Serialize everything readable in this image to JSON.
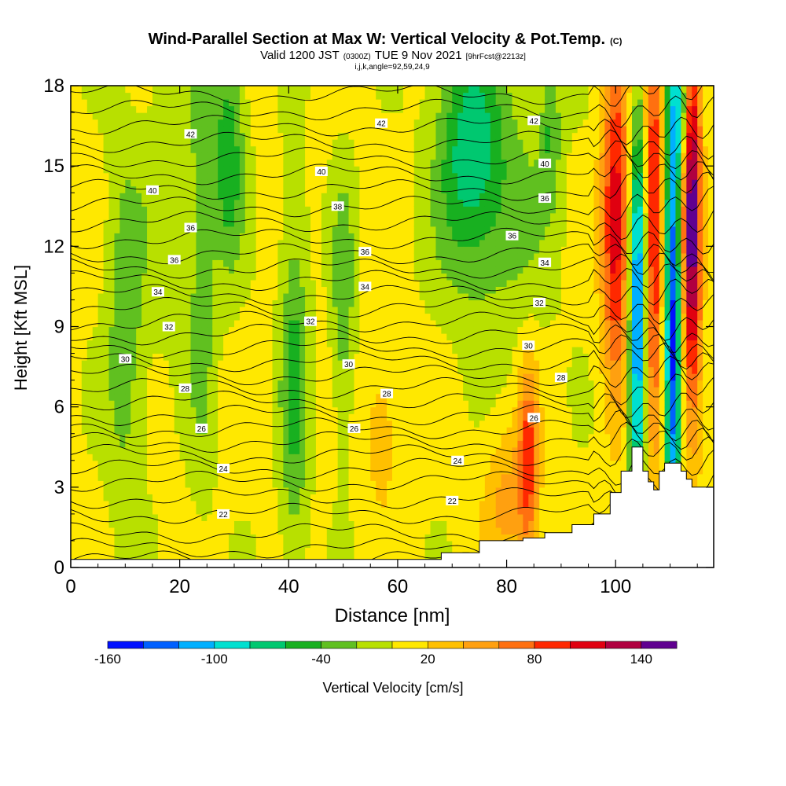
{
  "chart_data": {
    "type": "heatmap",
    "title": "Wind-Parallel Section at Max W: Vertical Velocity & Pot.Temp.",
    "title_mark": "(C)",
    "subtitle": {
      "prefix": "Valid 1200 JST",
      "utc": "(0300Z)",
      "date": "TUE 9 Nov 2021",
      "forecast": "[9hrFcst@2213z]"
    },
    "subtitle2": "i,j,k,angle=92,59,24,9",
    "xlabel": "Distance [nm]",
    "ylabel": "Height [Kft MSL]",
    "xlim": [
      0,
      118
    ],
    "ylim": [
      0,
      18
    ],
    "x_ticks": [
      0,
      20,
      40,
      60,
      80,
      100
    ],
    "y_ticks": [
      0,
      3,
      6,
      9,
      12,
      15,
      18
    ],
    "grid": false,
    "colorbar": {
      "label": "Vertical Velocity [cm/s]",
      "levels": [
        -160,
        -140,
        -120,
        -100,
        -80,
        -60,
        -40,
        -20,
        0,
        20,
        40,
        60,
        80,
        100,
        120,
        140,
        160
      ],
      "tick_labels": [
        "-160",
        "-100",
        "-40",
        "20",
        "80",
        "140"
      ],
      "tick_values": [
        -160,
        -100,
        -40,
        20,
        80,
        140
      ],
      "colors": [
        "#0010ff",
        "#0060ff",
        "#00b0ff",
        "#00e0d0",
        "#00c870",
        "#18b020",
        "#60c020",
        "#b8e000",
        "#ffe800",
        "#ffc000",
        "#ffa010",
        "#ff7010",
        "#ff2800",
        "#e00010",
        "#b00040",
        "#600090"
      ]
    },
    "terrain": [
      [
        0,
        0.3
      ],
      [
        68,
        0.3
      ],
      [
        68,
        0.55
      ],
      [
        75,
        0.55
      ],
      [
        75,
        1.0
      ],
      [
        83,
        1.0
      ],
      [
        83,
        1.1
      ],
      [
        87,
        1.1
      ],
      [
        87,
        1.3
      ],
      [
        92,
        1.3
      ],
      [
        92,
        1.6
      ],
      [
        96,
        1.6
      ],
      [
        96,
        2.0
      ],
      [
        99,
        2.0
      ],
      [
        99,
        2.8
      ],
      [
        101,
        2.8
      ],
      [
        101,
        3.6
      ],
      [
        103,
        3.6
      ],
      [
        103,
        4.5
      ],
      [
        105,
        4.5
      ],
      [
        105,
        3.6
      ],
      [
        106,
        3.6
      ],
      [
        106,
        3.2
      ],
      [
        107,
        3.2
      ],
      [
        107,
        2.9
      ],
      [
        108,
        2.9
      ],
      [
        108,
        3.6
      ],
      [
        109,
        3.6
      ],
      [
        109,
        3.9
      ],
      [
        112,
        3.9
      ],
      [
        112,
        3.6
      ],
      [
        113,
        3.6
      ],
      [
        113,
        3.3
      ],
      [
        114,
        3.3
      ],
      [
        114,
        3.0
      ],
      [
        118,
        3.0
      ]
    ],
    "updrafts": [
      {
        "x": 10,
        "y": 9,
        "sx": 2.5,
        "sy": 5,
        "w": -40
      },
      {
        "x": 17,
        "y": 14,
        "sx": 2.5,
        "sy": 4,
        "w": -20
      },
      {
        "x": 24,
        "y": 12,
        "sx": 1.8,
        "sy": 6,
        "w": -40
      },
      {
        "x": 29,
        "y": 15.5,
        "sx": 2,
        "sy": 3,
        "w": -60
      },
      {
        "x": 41,
        "y": 7,
        "sx": 1.8,
        "sy": 5,
        "w": -50
      },
      {
        "x": 50,
        "y": 10,
        "sx": 1.5,
        "sy": 3.5,
        "w": -40
      },
      {
        "x": 73,
        "y": 16,
        "sx": 4,
        "sy": 3,
        "w": -60
      },
      {
        "x": 78,
        "y": 13.5,
        "sx": 7,
        "sy": 3.5,
        "w": -35
      },
      {
        "x": 88,
        "y": 16.5,
        "sx": 1.3,
        "sy": 2,
        "w": -40
      },
      {
        "x": 84,
        "y": 4,
        "sx": 1.3,
        "sy": 2.5,
        "w": 80
      },
      {
        "x": 80,
        "y": 2.5,
        "sx": 3,
        "sy": 2,
        "w": 40
      },
      {
        "x": 57,
        "y": 5,
        "sx": 2,
        "sy": 2,
        "w": 30
      },
      {
        "x": 100,
        "y": 13,
        "sx": 1.8,
        "sy": 4.5,
        "w": 110
      },
      {
        "x": 104,
        "y": 9,
        "sx": 1.1,
        "sy": 5.5,
        "w": -140
      },
      {
        "x": 107,
        "y": 13,
        "sx": 1.1,
        "sy": 6.5,
        "w": 100
      },
      {
        "x": 110.5,
        "y": 9.5,
        "sx": 1.0,
        "sy": 7,
        "w": -150
      },
      {
        "x": 114,
        "y": 13,
        "sx": 1.2,
        "sy": 5.5,
        "w": 150
      },
      {
        "x": 112,
        "y": 17,
        "sx": 1.0,
        "sy": 1.5,
        "w": -70
      }
    ],
    "isentropes_base": [
      0.25,
      0.7,
      1.3,
      2.0,
      2.6,
      3.2,
      3.7,
      4.2,
      4.7,
      5.2,
      5.7,
      6.2,
      6.7,
      7.2,
      7.7,
      8.2,
      8.7,
      9.2,
      9.7,
      10.2,
      10.7,
      11.2,
      11.7,
      12.3,
      12.9,
      13.5,
      14.1,
      14.7,
      15.3,
      15.9,
      16.5,
      17.1,
      17.7
    ],
    "isentrope_labels": [
      {
        "text": "22",
        "x": 28,
        "y": 2.0
      },
      {
        "text": "22",
        "x": 70,
        "y": 2.5
      },
      {
        "text": "24",
        "x": 28,
        "y": 3.7
      },
      {
        "text": "24",
        "x": 71,
        "y": 4.0
      },
      {
        "text": "26",
        "x": 24,
        "y": 5.2
      },
      {
        "text": "26",
        "x": 52,
        "y": 5.2
      },
      {
        "text": "26",
        "x": 85,
        "y": 5.6
      },
      {
        "text": "28",
        "x": 21,
        "y": 6.7
      },
      {
        "text": "28",
        "x": 58,
        "y": 6.5
      },
      {
        "text": "28",
        "x": 90,
        "y": 7.1
      },
      {
        "text": "30",
        "x": 10,
        "y": 7.8
      },
      {
        "text": "30",
        "x": 51,
        "y": 7.6
      },
      {
        "text": "30",
        "x": 84,
        "y": 8.3
      },
      {
        "text": "32",
        "x": 18,
        "y": 9.0
      },
      {
        "text": "32",
        "x": 44,
        "y": 9.2
      },
      {
        "text": "32",
        "x": 86,
        "y": 9.9
      },
      {
        "text": "34",
        "x": 16,
        "y": 10.3
      },
      {
        "text": "34",
        "x": 54,
        "y": 10.5
      },
      {
        "text": "34",
        "x": 87,
        "y": 11.4
      },
      {
        "text": "36",
        "x": 19,
        "y": 11.5
      },
      {
        "text": "36",
        "x": 54,
        "y": 11.8
      },
      {
        "text": "36",
        "x": 81,
        "y": 12.4
      },
      {
        "text": "36",
        "x": 22,
        "y": 12.7
      },
      {
        "text": "36",
        "x": 87,
        "y": 13.8
      },
      {
        "text": "38",
        "x": 49,
        "y": 13.5
      },
      {
        "text": "40",
        "x": 15,
        "y": 14.1
      },
      {
        "text": "40",
        "x": 46,
        "y": 14.8
      },
      {
        "text": "40",
        "x": 87,
        "y": 15.1
      },
      {
        "text": "42",
        "x": 22,
        "y": 16.2
      },
      {
        "text": "42",
        "x": 57,
        "y": 16.6
      },
      {
        "text": "42",
        "x": 85,
        "y": 16.7
      }
    ]
  }
}
